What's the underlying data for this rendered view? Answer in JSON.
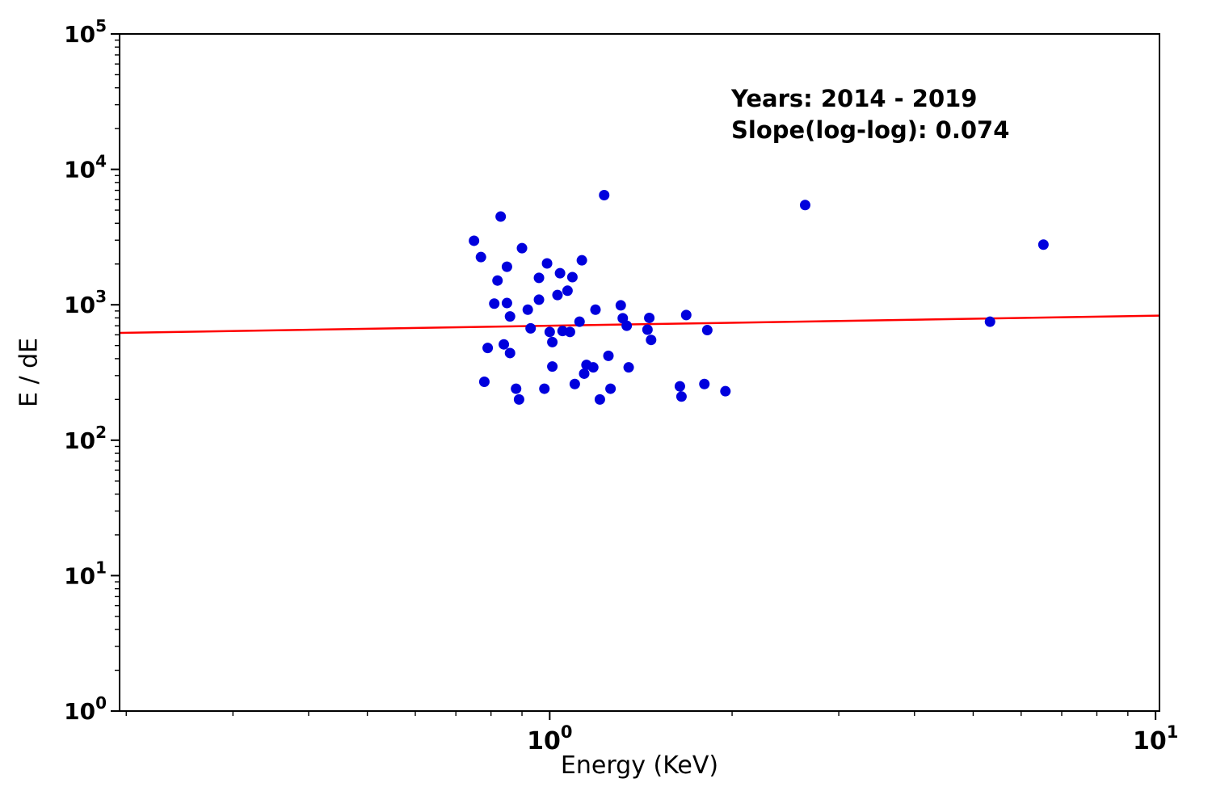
{
  "chart_data": {
    "type": "scatter",
    "title": "",
    "xlabel": "Energy (KeV)",
    "ylabel": "E / dE",
    "xscale": "log",
    "yscale": "log",
    "xlim": [
      0.195,
      10.15
    ],
    "ylim": [
      1,
      100000
    ],
    "x_ticks_exponents": [
      0,
      1
    ],
    "y_ticks_exponents": [
      0,
      1,
      2,
      3,
      4,
      5
    ],
    "grid": false,
    "legend": "none",
    "annotation": {
      "line1": "Years: 2014 - 2019",
      "line2": "Slope(log-log): 0.074"
    },
    "fit_line": {
      "slope_loglog": 0.074,
      "y_at_x1": 700
    },
    "colors": {
      "points": "#0000dd",
      "fit_line": "#ff0000",
      "axes": "#000000"
    },
    "points": [
      [
        0.75,
        2970
      ],
      [
        0.77,
        2250
      ],
      [
        0.83,
        4480
      ],
      [
        0.85,
        1910
      ],
      [
        0.82,
        1510
      ],
      [
        0.81,
        1020
      ],
      [
        0.85,
        1030
      ],
      [
        0.86,
        820
      ],
      [
        0.79,
        480
      ],
      [
        0.84,
        510
      ],
      [
        0.86,
        440
      ],
      [
        0.78,
        270
      ],
      [
        0.88,
        240
      ],
      [
        0.89,
        200
      ],
      [
        0.9,
        2620
      ],
      [
        0.92,
        920
      ],
      [
        0.93,
        670
      ],
      [
        0.96,
        1090
      ],
      [
        0.96,
        1580
      ],
      [
        0.99,
        2020
      ],
      [
        0.98,
        240
      ],
      [
        1.0,
        630
      ],
      [
        1.01,
        350
      ],
      [
        1.01,
        530
      ],
      [
        1.03,
        1180
      ],
      [
        1.04,
        1710
      ],
      [
        1.05,
        640
      ],
      [
        1.07,
        1270
      ],
      [
        1.09,
        1600
      ],
      [
        1.08,
        630
      ],
      [
        1.1,
        260
      ],
      [
        1.12,
        750
      ],
      [
        1.13,
        2130
      ],
      [
        1.14,
        310
      ],
      [
        1.15,
        360
      ],
      [
        1.18,
        345
      ],
      [
        1.19,
        920
      ],
      [
        1.21,
        200
      ],
      [
        1.23,
        6450
      ],
      [
        1.25,
        420
      ],
      [
        1.26,
        240
      ],
      [
        1.31,
        990
      ],
      [
        1.32,
        795
      ],
      [
        1.34,
        700
      ],
      [
        1.35,
        345
      ],
      [
        1.45,
        655
      ],
      [
        1.47,
        550
      ],
      [
        1.46,
        800
      ],
      [
        1.64,
        250
      ],
      [
        1.65,
        210
      ],
      [
        1.68,
        840
      ],
      [
        1.8,
        260
      ],
      [
        1.82,
        650
      ],
      [
        1.95,
        230
      ],
      [
        2.64,
        5450
      ],
      [
        5.33,
        750
      ],
      [
        6.53,
        2780
      ]
    ]
  }
}
